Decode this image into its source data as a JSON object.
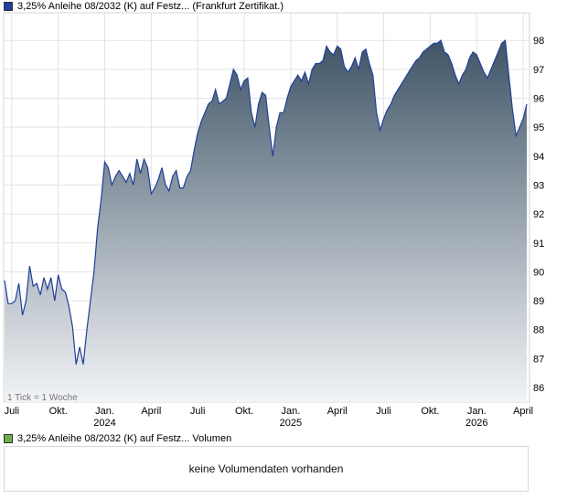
{
  "legend": {
    "price_label": "3,25% Anleihe 08/2032 (K) auf Festz... (Frankfurt Zertifikat.)",
    "price_color": "#1f3f9a",
    "volume_label": "3,25% Anleihe 08/2032 (K) auf Festz... Volumen",
    "volume_color": "#6ab04c"
  },
  "tick_note": "1 Tick = 1 Woche",
  "volume_message": "keine Volumendaten vorhanden",
  "chart_data": {
    "type": "area",
    "ylim": [
      85.5,
      98.5
    ],
    "y_ticks": [
      86,
      87,
      88,
      89,
      90,
      91,
      92,
      93,
      94,
      95,
      96,
      97,
      98
    ],
    "x_axis_months": [
      {
        "label": "Juli",
        "year": "",
        "pos": 2
      },
      {
        "label": "Okt.",
        "year": "",
        "pos": 15
      },
      {
        "label": "Jan.",
        "year": "2024",
        "pos": 28
      },
      {
        "label": "April",
        "year": "",
        "pos": 41
      },
      {
        "label": "Juli",
        "year": "",
        "pos": 54
      },
      {
        "label": "Okt.",
        "year": "",
        "pos": 67
      },
      {
        "label": "Jan.",
        "year": "2025",
        "pos": 80
      },
      {
        "label": "April",
        "year": "",
        "pos": 93
      },
      {
        "label": "Juli",
        "year": "",
        "pos": 106
      },
      {
        "label": "Okt.",
        "year": "",
        "pos": 119
      },
      {
        "label": "Jan.",
        "year": "2026",
        "pos": 132
      },
      {
        "label": "April",
        "year": "",
        "pos": 145
      }
    ],
    "series": [
      {
        "values": [
          89.7,
          88.9,
          88.9,
          89.0,
          89.6,
          88.5,
          89.0,
          90.2,
          89.5,
          89.6,
          89.2,
          89.8,
          89.4,
          89.8,
          89.0,
          89.9,
          89.4,
          89.3,
          88.8,
          88.1,
          86.8,
          87.4,
          86.8,
          88.0,
          89.0,
          90.0,
          91.5,
          92.5,
          93.8,
          93.6,
          93.0,
          93.3,
          93.5,
          93.3,
          93.1,
          93.4,
          93.0,
          93.9,
          93.4,
          93.9,
          93.6,
          92.7,
          92.9,
          93.2,
          93.6,
          93.0,
          92.8,
          93.3,
          93.5,
          92.9,
          92.9,
          93.3,
          93.5,
          94.2,
          94.8,
          95.2,
          95.5,
          95.8,
          95.9,
          96.3,
          95.8,
          95.9,
          96.0,
          96.5,
          97.0,
          96.8,
          96.3,
          96.6,
          96.7,
          95.5,
          95.0,
          95.8,
          96.2,
          96.1,
          95.0,
          94.0,
          95.0,
          95.5,
          95.5,
          96.0,
          96.4,
          96.6,
          96.8,
          96.6,
          96.9,
          96.5,
          97.0,
          97.2,
          97.2,
          97.3,
          97.8,
          97.6,
          97.5,
          97.8,
          97.7,
          97.1,
          96.9,
          97.1,
          97.4,
          97.0,
          97.6,
          97.7,
          97.2,
          96.8,
          95.5,
          94.9,
          95.3,
          95.6,
          95.8,
          96.1,
          96.3,
          96.5,
          96.7,
          96.9,
          97.1,
          97.3,
          97.4,
          97.6,
          97.7,
          97.8,
          97.9,
          97.9,
          98.0,
          97.6,
          97.5,
          97.2,
          96.8,
          96.5,
          96.8,
          97.0,
          97.4,
          97.6,
          97.5,
          97.2,
          96.9,
          96.7,
          97.0,
          97.3,
          97.6,
          97.9,
          98.0,
          96.8,
          95.6,
          94.7,
          95.0,
          95.3,
          95.8
        ]
      }
    ]
  }
}
